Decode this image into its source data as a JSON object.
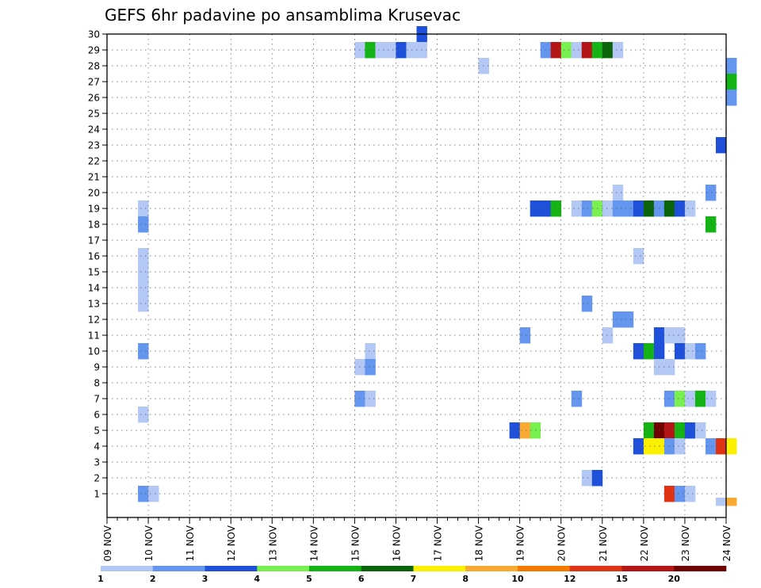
{
  "chart_data": {
    "type": "heatmap",
    "title": "GEFS 6hr padavine po ansamblima Krusevac",
    "xlabel": "",
    "ylabel": "",
    "x_ticks": [
      "09 NOV",
      "10 NOV",
      "11 NOV",
      "12 NOV",
      "13 NOV",
      "14 NOV",
      "15 NOV",
      "16 NOV",
      "17 NOV",
      "18 NOV",
      "19 NOV",
      "20 NOV",
      "21 NOV",
      "22 NOV",
      "23 NOV",
      "24 NOV"
    ],
    "y_ticks": [
      "1",
      "2",
      "3",
      "4",
      "5",
      "6",
      "7",
      "8",
      "9",
      "10",
      "11",
      "12",
      "13",
      "14",
      "15",
      "16",
      "17",
      "18",
      "19",
      "20",
      "21",
      "22",
      "23",
      "24",
      "25",
      "26",
      "27",
      "28",
      "29",
      "30"
    ],
    "time_steps_per_day": 4,
    "grid": true,
    "colorbar": {
      "labels": [
        "1",
        "2",
        "3",
        "4",
        "5",
        "6",
        "7",
        "8",
        "10",
        "12",
        "15",
        "20"
      ],
      "colors": [
        "#b4c8f5",
        "#6496f0",
        "#1e50dc",
        "#78f050",
        "#14b414",
        "#0a640a",
        "#faf000",
        "#faaa32",
        "#f57800",
        "#e13214",
        "#b41414",
        "#700000"
      ]
    },
    "cells": [
      [
        31,
        30,
        3
      ],
      [
        25,
        29,
        1
      ],
      [
        26,
        29,
        5
      ],
      [
        27,
        29,
        1
      ],
      [
        28,
        29,
        1
      ],
      [
        29,
        29,
        3
      ],
      [
        30,
        29,
        1
      ],
      [
        31,
        29,
        1
      ],
      [
        43,
        29,
        2
      ],
      [
        44,
        29,
        11
      ],
      [
        45,
        29,
        4
      ],
      [
        46,
        29,
        1
      ],
      [
        47,
        29,
        11
      ],
      [
        48,
        29,
        5
      ],
      [
        49,
        29,
        6
      ],
      [
        50,
        29,
        1
      ],
      [
        37,
        28,
        1
      ],
      [
        61,
        28,
        2
      ],
      [
        61,
        27,
        5
      ],
      [
        61,
        26,
        2
      ],
      [
        60,
        23,
        3
      ],
      [
        50,
        20,
        1
      ],
      [
        59,
        20,
        2
      ],
      [
        42,
        19,
        3
      ],
      [
        43,
        19,
        3
      ],
      [
        44,
        19,
        5
      ],
      [
        46,
        19,
        1
      ],
      [
        47,
        19,
        2
      ],
      [
        48,
        19,
        4
      ],
      [
        49,
        19,
        1
      ],
      [
        50,
        19,
        2
      ],
      [
        51,
        19,
        2
      ],
      [
        52,
        19,
        3
      ],
      [
        53,
        19,
        6
      ],
      [
        54,
        19,
        2
      ],
      [
        55,
        19,
        6
      ],
      [
        56,
        19,
        3
      ],
      [
        57,
        19,
        1
      ],
      [
        4,
        19,
        1
      ],
      [
        4,
        18,
        2
      ],
      [
        59,
        18,
        5
      ],
      [
        52,
        16,
        1
      ],
      [
        4,
        16,
        1
      ],
      [
        4,
        15,
        1
      ],
      [
        4,
        14,
        1
      ],
      [
        47,
        13,
        2
      ],
      [
        4,
        13,
        1
      ],
      [
        50,
        12,
        2
      ],
      [
        51,
        12,
        2
      ],
      [
        41,
        11,
        2
      ],
      [
        49,
        11,
        1
      ],
      [
        54,
        11,
        3
      ],
      [
        55,
        11,
        1
      ],
      [
        56,
        11,
        1
      ],
      [
        4,
        10,
        2
      ],
      [
        26,
        10,
        1
      ],
      [
        52,
        10,
        3
      ],
      [
        53,
        10,
        5
      ],
      [
        54,
        10,
        3
      ],
      [
        56,
        10,
        3
      ],
      [
        57,
        10,
        1
      ],
      [
        58,
        10,
        2
      ],
      [
        25,
        9,
        1
      ],
      [
        26,
        9,
        2
      ],
      [
        54,
        9,
        1
      ],
      [
        55,
        9,
        1
      ],
      [
        25,
        7,
        2
      ],
      [
        26,
        7,
        1
      ],
      [
        46,
        7,
        2
      ],
      [
        55,
        7,
        2
      ],
      [
        56,
        7,
        4
      ],
      [
        57,
        7,
        1
      ],
      [
        58,
        7,
        5
      ],
      [
        59,
        7,
        1
      ],
      [
        4,
        6,
        1
      ],
      [
        40,
        5,
        3
      ],
      [
        41,
        5,
        8
      ],
      [
        42,
        5,
        4
      ],
      [
        53,
        5,
        5
      ],
      [
        54,
        5,
        12
      ],
      [
        55,
        5,
        11
      ],
      [
        56,
        5,
        5
      ],
      [
        57,
        5,
        3
      ],
      [
        58,
        5,
        1
      ],
      [
        52,
        4,
        3
      ],
      [
        53,
        4,
        7
      ],
      [
        54,
        4,
        7
      ],
      [
        55,
        4,
        2
      ],
      [
        56,
        4,
        1
      ],
      [
        59,
        4,
        2
      ],
      [
        60,
        4,
        10
      ],
      [
        61,
        4,
        7
      ],
      [
        47,
        2,
        1
      ],
      [
        48,
        2,
        3
      ],
      [
        4,
        1,
        2
      ],
      [
        5,
        1,
        1
      ],
      [
        55,
        1,
        10
      ],
      [
        56,
        1,
        2
      ],
      [
        57,
        1,
        1
      ],
      [
        60,
        0.5,
        1
      ],
      [
        61,
        0.5,
        8
      ]
    ]
  }
}
